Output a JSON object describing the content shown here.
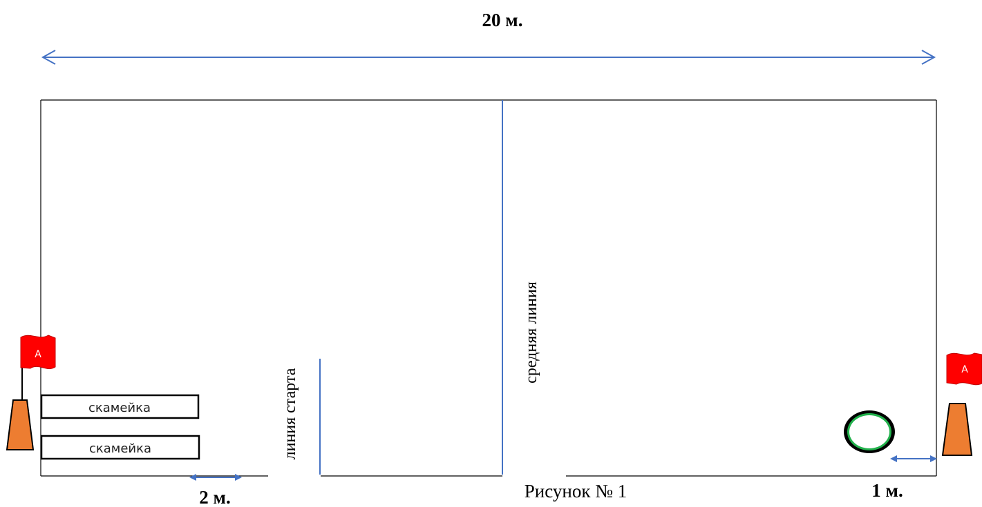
{
  "labels": {
    "total_length": "20 м.",
    "bench_gap": "2 м.",
    "hoop_gap": "1 м.",
    "start_line": "линия старта",
    "middle_line": "средняя линия",
    "caption": "Рисунок № 1"
  },
  "benches": [
    {
      "label": "скамейка"
    },
    {
      "label": "скамейка"
    }
  ],
  "flags": [
    {
      "letter": "А"
    },
    {
      "letter": "А"
    }
  ],
  "colors": {
    "arrow": "#4472c4",
    "line": "#4472c4",
    "border": "#000000",
    "cone": "#ed7d31",
    "flag": "#ff0000",
    "hoop_fill": "#22b14c",
    "hoop_stroke": "#000000"
  },
  "icons": {
    "cone": "traffic-cone-icon",
    "flag": "flag-icon",
    "hoop": "hoop-icon"
  }
}
